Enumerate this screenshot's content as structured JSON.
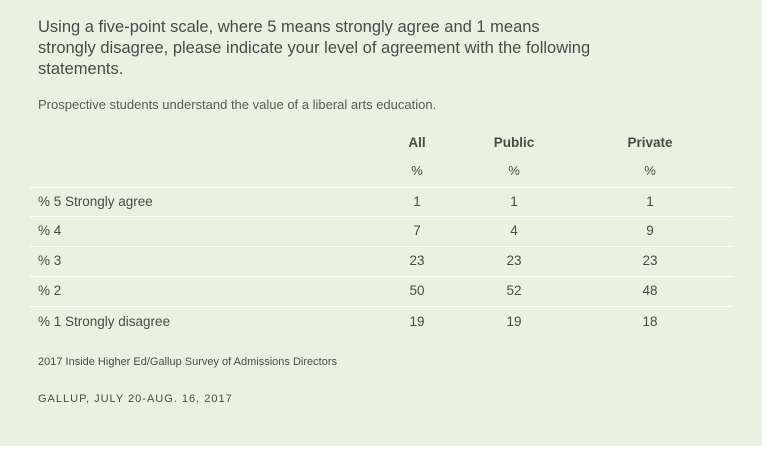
{
  "title": "Using a five-point scale, where 5 means strongly agree and 1 means strongly disagree, please indicate your level of agreement with the following statements.",
  "subtitle": "Prospective students understand the value of a liberal arts education.",
  "chart_data": {
    "type": "table",
    "columns": [
      "All",
      "Public",
      "Private"
    ],
    "units": [
      "%",
      "%",
      "%"
    ],
    "rows": [
      {
        "label": "% 5 Strongly agree",
        "values": [
          "1",
          "1",
          "1"
        ]
      },
      {
        "label": "% 4",
        "values": [
          "7",
          "4",
          "9"
        ]
      },
      {
        "label": "% 3",
        "values": [
          "23",
          "23",
          "23"
        ]
      },
      {
        "label": "% 2",
        "values": [
          "50",
          "52",
          "48"
        ]
      },
      {
        "label": "% 1 Strongly disagree",
        "values": [
          "19",
          "19",
          "18"
        ]
      }
    ]
  },
  "source": "2017 Inside Higher Ed/Gallup Survey of Admissions Directors",
  "footer": "GALLUP, JULY 20-AUG. 16, 2017",
  "colors": {
    "background": "#eaf1e1",
    "text": "#4a4a4a",
    "divider": "#ffffff"
  }
}
